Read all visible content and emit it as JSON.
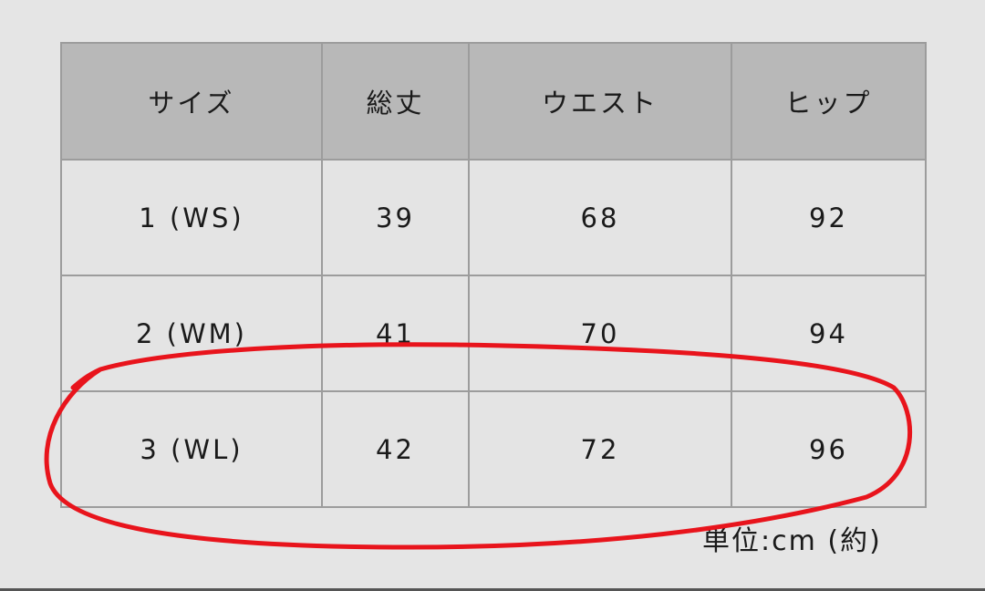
{
  "table": {
    "headers": [
      "サイズ",
      "総丈",
      "ウエスト",
      "ヒップ"
    ],
    "rows": [
      [
        "1 (WS)",
        "39",
        "68",
        "92"
      ],
      [
        "2 (WM)",
        "41",
        "70",
        "94"
      ],
      [
        "3 (WL)",
        "42",
        "72",
        "96"
      ]
    ]
  },
  "unit_note": "単位:cm (約)",
  "colors": {
    "annotation": "#e8141c",
    "header_bg": "#b8b8b8",
    "cell_bg": "#e4e4e4"
  }
}
